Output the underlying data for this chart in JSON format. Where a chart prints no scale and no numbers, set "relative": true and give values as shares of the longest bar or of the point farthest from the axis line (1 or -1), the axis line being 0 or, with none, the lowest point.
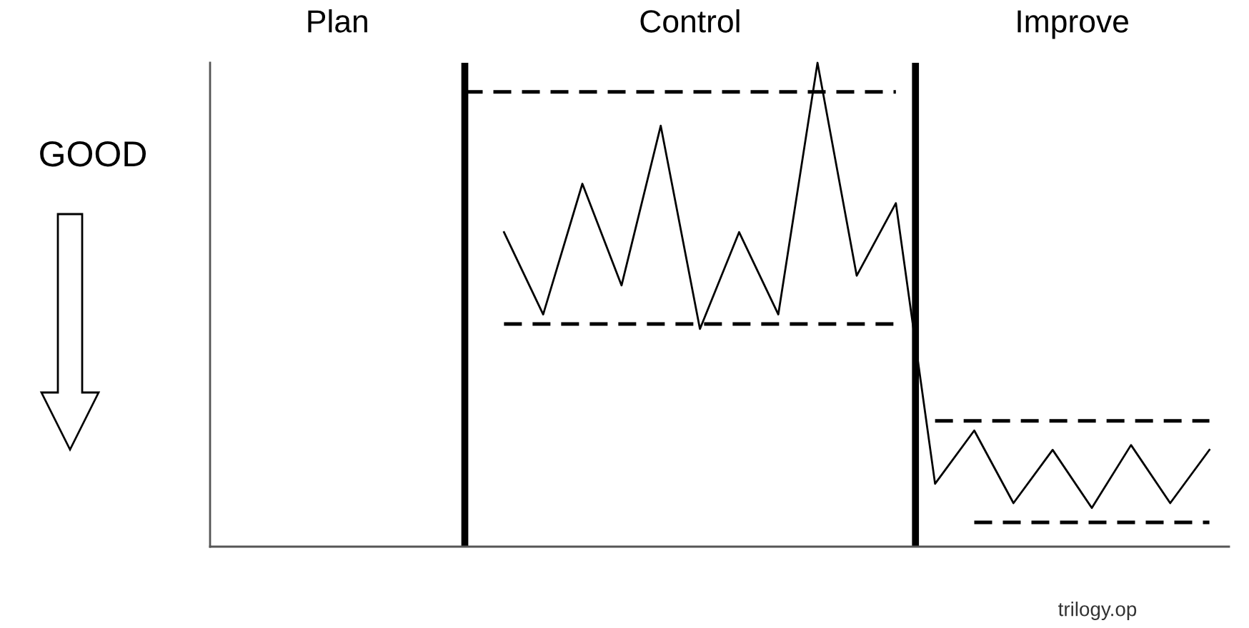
{
  "chart_data": {
    "type": "line",
    "relative": true,
    "marker": "none",
    "line_style": "solid",
    "categories": [
      null,
      null,
      null,
      null,
      null,
      null,
      null,
      null,
      null,
      null,
      null,
      null,
      null,
      null,
      null,
      null,
      null,
      null,
      null,
      null,
      null,
      null,
      null,
      null,
      null,
      null
    ],
    "annotations": [
      "Plan",
      "Control",
      "Improve",
      "GOOD",
      "trilogy.op"
    ],
    "series": [
      {
        "color": "#000000",
        "values": [
          null,
          null,
          null,
          null,
          null,
          null,
          null,
          0.65,
          0.48,
          0.75,
          0.54,
          0.87,
          0.45,
          0.65,
          0.48,
          1,
          0.56,
          0.71,
          0.13,
          0.24,
          0.09,
          0.2,
          0.08,
          0.21,
          0.09,
          0.2
        ]
      },
      {
        "color": "#000000",
        "line_style": "dashed",
        "values": [
          null,
          null,
          null,
          null,
          null,
          null,
          0.94,
          0.94,
          0.94,
          0.94,
          0.94,
          0.94,
          0.94,
          0.94,
          0.94,
          0.94,
          0.94,
          0.94,
          null,
          null,
          null,
          null,
          null,
          null,
          null,
          null
        ]
      },
      {
        "color": "#000000",
        "line_style": "dashed",
        "values": [
          null,
          null,
          null,
          null,
          null,
          null,
          null,
          0.46,
          0.46,
          0.46,
          0.46,
          0.46,
          0.46,
          0.46,
          0.46,
          0.46,
          0.46,
          0.46,
          null,
          null,
          null,
          null,
          null,
          null,
          null,
          null
        ]
      },
      {
        "color": "#000000",
        "line_style": "dashed",
        "values": [
          null,
          null,
          null,
          null,
          null,
          null,
          null,
          null,
          null,
          null,
          null,
          null,
          null,
          null,
          null,
          null,
          null,
          null,
          0.26,
          0.26,
          0.26,
          0.26,
          0.26,
          0.26,
          0.26,
          0.26
        ]
      },
      {
        "color": "#000000",
        "line_style": "dashed",
        "values": [
          null,
          null,
          null,
          null,
          null,
          null,
          null,
          null,
          null,
          null,
          null,
          null,
          null,
          null,
          null,
          null,
          null,
          null,
          null,
          0.05,
          0.05,
          0.05,
          0.05,
          0.05,
          0.05,
          0.05
        ]
      }
    ]
  }
}
